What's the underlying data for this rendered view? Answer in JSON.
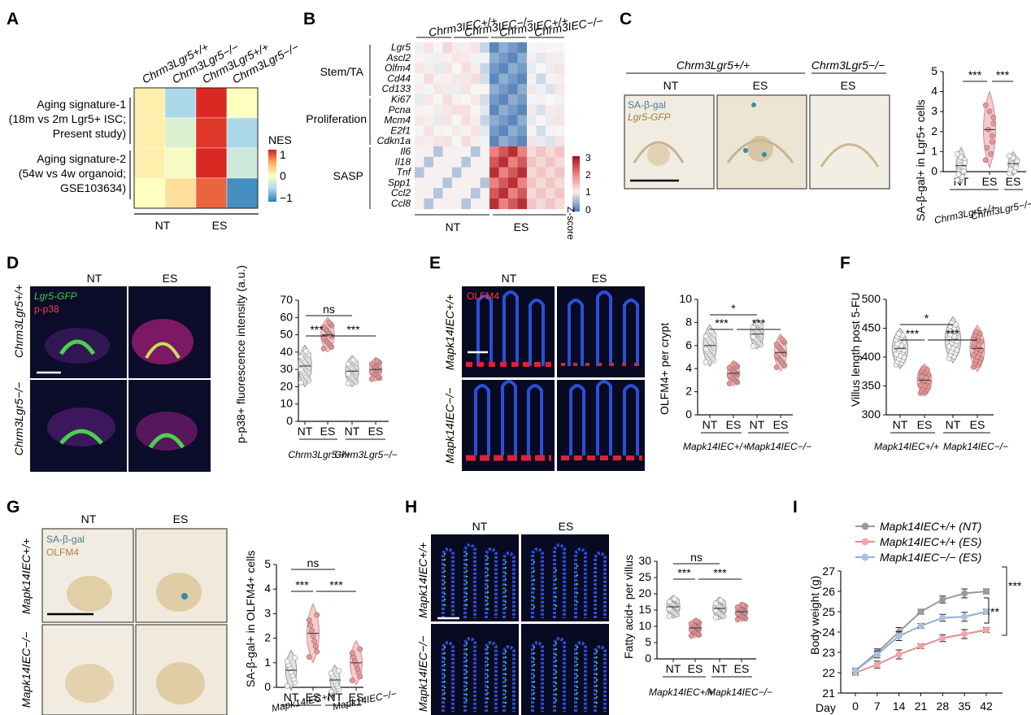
{
  "panels": {
    "A": {
      "label": "A",
      "col_labels": [
        "Chrm3Lgr5+/+",
        "Chrm3Lgr5−/−",
        "Chrm3Lgr5+/+",
        "Chrm3Lgr5−/−"
      ],
      "row_groups": [
        {
          "lines": [
            "Aging signature-1",
            "(18m vs 2m Lgr5+ ISC;",
            "Present study)"
          ]
        },
        {
          "lines": [
            "Aging signature-2",
            "(54w vs 4w organoid;",
            "GSE103634)"
          ]
        }
      ],
      "cells": [
        [
          0.1,
          -0.5,
          0.95,
          0.0
        ],
        [
          0.1,
          -0.2,
          0.9,
          -0.5
        ],
        [
          0.1,
          -0.05,
          0.95,
          -0.3
        ],
        [
          0.0,
          0.2,
          0.75,
          -0.9
        ]
      ],
      "legend_title": "NES",
      "legend_ticks": [
        "1",
        "0",
        "−1"
      ],
      "conditions": [
        "NT",
        "ES"
      ]
    },
    "B": {
      "label": "B",
      "col_labels": [
        "Chrm3IEC+/+",
        "Chrm3IEC−/−",
        "Chrm3IEC+/+",
        "Chrm3IEC−/−"
      ],
      "groups": [
        {
          "name": "Stem/TA",
          "genes": [
            "Lgr5",
            "Ascl2",
            "Olfm4",
            "Cd44",
            "Cd133"
          ]
        },
        {
          "name": "Proliferation",
          "genes": [
            "Ki67",
            "Pcna",
            "Mcm4",
            "E2f1",
            "Cdkn1a"
          ]
        },
        {
          "name": "SASP",
          "genes": [
            "Il6",
            "Il18",
            "Tnf",
            "Spp1",
            "Ccl2",
            "Ccl8"
          ]
        }
      ],
      "legend_title": "Z-score",
      "legend_ticks": [
        "3",
        "2",
        "1",
        "0"
      ],
      "conditions": [
        "NT",
        "ES"
      ]
    },
    "C": {
      "label": "C",
      "group1": "Chrm3Lgr5+/+",
      "group2": "Chrm3Lgr5−/−",
      "image_labels": [
        "NT",
        "ES",
        "ES"
      ],
      "stain1": "SA-β-gal",
      "stain2": "Lgr5-GFP",
      "ylabel": "SA-β-gal+ in Lgr5+ cells",
      "y_ticks": [
        "0",
        "1",
        "2",
        "3",
        "4",
        "5"
      ],
      "x_labels": [
        "NT",
        "ES",
        "ES"
      ],
      "genotypes": [
        "Chrm3Lgr5+/+",
        "Chrm3Lgr5−/−"
      ],
      "sig": [
        "***",
        "***"
      ]
    },
    "D": {
      "label": "D",
      "col_labels": [
        "NT",
        "ES"
      ],
      "row_labels": [
        "Chrm3Lgr5+/+",
        "Chrm3Lgr5−/−"
      ],
      "stain1": "Lgr5-GFP",
      "stain2": "p-p38",
      "ylabel": "p-p38+ fluorescence intensity (a.u.)",
      "y_ticks": [
        "0",
        "10",
        "20",
        "30",
        "40",
        "50",
        "60",
        "70"
      ],
      "x_labels": [
        "NT",
        "ES",
        "NT",
        "ES"
      ],
      "genotypes": [
        "Chrm3Lgr5+/+",
        "Chrm3Lgr5−/−"
      ],
      "sig": [
        "ns",
        "***",
        "***"
      ]
    },
    "E": {
      "label": "E",
      "col_labels": [
        "NT",
        "ES"
      ],
      "row_labels": [
        "Mapk14IEC+/+",
        "Mapk14IEC−/−"
      ],
      "stain": "OLFM4",
      "ylabel": "OLFM4+ per crypt",
      "y_ticks": [
        "0",
        "2",
        "4",
        "6",
        "8",
        "10"
      ],
      "x_labels": [
        "NT",
        "ES",
        "NT",
        "ES"
      ],
      "genotypes": [
        "Mapk14IEC+/+",
        "Mapk14IEC−/−"
      ],
      "sig": [
        "*",
        "***",
        "***"
      ]
    },
    "F": {
      "label": "F",
      "ylabel": "Villus length post 5-FU",
      "y_ticks": [
        "300",
        "350",
        "400",
        "450",
        "500"
      ],
      "x_labels": [
        "NT",
        "ES",
        "NT",
        "ES"
      ],
      "genotypes": [
        "Mapk14IEC+/+",
        "Mapk14IEC−/−"
      ],
      "sig": [
        "*",
        "***",
        "***"
      ]
    },
    "G": {
      "label": "G",
      "col_labels": [
        "NT",
        "ES"
      ],
      "row_labels": [
        "Mapk14IEC+/+",
        "Mapk14IEC−/−"
      ],
      "stain1": "SA-β-gal",
      "stain2": "OLFM4",
      "ylabel": "SA-β-gal+ in OLFM4+ cells",
      "y_ticks": [
        "0",
        "1",
        "2",
        "3",
        "4",
        "5"
      ],
      "x_labels": [
        "NT",
        "ES",
        "NT",
        "ES"
      ],
      "genotypes": [
        "Mapk14IEC+/+",
        "Mapk14IEC−/−"
      ],
      "sig": [
        "ns",
        "***",
        "***"
      ]
    },
    "H": {
      "label": "H",
      "col_labels": [
        "NT",
        "ES"
      ],
      "row_labels": [
        "Mapk14IEC+/+",
        "Mapk14IEC−/−"
      ],
      "ylabel": "Fatty acid+ per villus",
      "y_ticks": [
        "0",
        "5",
        "10",
        "15",
        "20",
        "25",
        "30"
      ],
      "x_labels": [
        "NT",
        "ES",
        "NT",
        "ES"
      ],
      "genotypes": [
        "Mapk14IEC+/+",
        "Mapk14IEC−/−"
      ],
      "sig": [
        "ns",
        "***",
        "***"
      ]
    },
    "I": {
      "label": "I",
      "ylabel": "Body weight (g)",
      "xlabel": "Day",
      "y_ticks": [
        "21",
        "22",
        "23",
        "24",
        "25",
        "26",
        "27"
      ],
      "x_ticks": [
        "0",
        "7",
        "14",
        "21",
        "28",
        "35",
        "42"
      ],
      "sig": [
        "***",
        "**"
      ]
    }
  },
  "colors": {
    "gray_violin": "#9a9a9a",
    "pink_violin": "#e7a3a6",
    "pink_dot": "#e88b8f",
    "blue_line": "#8faed8",
    "heat_red": "#b2182b",
    "heat_blue": "#2166ac"
  },
  "chart_data": [
    {
      "type": "heatmap",
      "panel": "A",
      "columns": [
        "Chrm3Lgr5+/+ NT",
        "Chrm3Lgr5−/− NT",
        "Chrm3Lgr5+/+ ES",
        "Chrm3Lgr5−/− ES"
      ],
      "values": [
        [
          0.1,
          -0.5,
          0.95,
          0.0
        ],
        [
          0.1,
          -0.2,
          0.9,
          -0.5
        ],
        [
          0.1,
          -0.05,
          0.95,
          -0.3
        ],
        [
          0.0,
          0.2,
          0.75,
          -0.9
        ]
      ],
      "range": [
        -1,
        1
      ]
    },
    {
      "type": "heatmap",
      "panel": "B",
      "rows": [
        "Lgr5",
        "Ascl2",
        "Olfm4",
        "Cd44",
        "Cd133",
        "Ki67",
        "Pcna",
        "Mcm4",
        "E2f1",
        "Cdkn1a",
        "Il6",
        "Il18",
        "Tnf",
        "Spp1",
        "Ccl2",
        "Ccl8"
      ],
      "range": [
        0,
        3
      ]
    },
    {
      "type": "scatter",
      "panel": "C",
      "categories": [
        "Chrm3Lgr5+/+ NT",
        "Chrm3Lgr5+/+ ES",
        "Chrm3Lgr5−/− ES"
      ],
      "means": [
        0.3,
        2.1,
        0.4
      ],
      "ylim": [
        0,
        5
      ]
    },
    {
      "type": "scatter",
      "panel": "D",
      "categories": [
        "Chrm3Lgr5+/+ NT",
        "Chrm3Lgr5+/+ ES",
        "Chrm3Lgr5−/− NT",
        "Chrm3Lgr5−/− ES"
      ],
      "means": [
        32,
        50,
        29,
        30
      ],
      "ylim": [
        0,
        70
      ]
    },
    {
      "type": "scatter",
      "panel": "E",
      "categories": [
        "Mapk14IEC+/+ NT",
        "Mapk14IEC+/+ ES",
        "Mapk14IEC−/− NT",
        "Mapk14IEC−/− ES"
      ],
      "means": [
        6,
        3.6,
        7,
        5.4
      ],
      "ylim": [
        0,
        10
      ]
    },
    {
      "type": "scatter",
      "panel": "F",
      "categories": [
        "Mapk14IEC+/+ NT",
        "Mapk14IEC+/+ ES",
        "Mapk14IEC−/− NT",
        "Mapk14IEC−/− ES"
      ],
      "means": [
        415,
        360,
        430,
        415
      ],
      "ylim": [
        300,
        500
      ]
    },
    {
      "type": "scatter",
      "panel": "G",
      "categories": [
        "Mapk14IEC+/+ NT",
        "Mapk14IEC+/+ ES",
        "Mapk14IEC−/− NT",
        "Mapk14IEC−/− ES"
      ],
      "means": [
        0.7,
        2.2,
        0.3,
        1.0
      ],
      "ylim": [
        0,
        5
      ]
    },
    {
      "type": "scatter",
      "panel": "H",
      "categories": [
        "Mapk14IEC+/+ NT",
        "Mapk14IEC+/+ ES",
        "Mapk14IEC−/− NT",
        "Mapk14IEC−/− ES"
      ],
      "means": [
        16,
        9.5,
        15.5,
        14.5
      ],
      "ylim": [
        0,
        30
      ]
    },
    {
      "type": "line",
      "panel": "I",
      "x": [
        0,
        7,
        14,
        21,
        28,
        35,
        42
      ],
      "series": [
        {
          "name": "Mapk14IEC+/+ (NT)",
          "values": [
            22.1,
            23.0,
            24.0,
            25.0,
            25.6,
            25.9,
            26.0
          ]
        },
        {
          "name": "Mapk14IEC+/+ (ES)",
          "values": [
            22.0,
            22.4,
            22.9,
            23.3,
            23.7,
            23.9,
            24.1
          ]
        },
        {
          "name": "Mapk14IEC−/− (ES)",
          "values": [
            22.1,
            22.9,
            23.8,
            24.3,
            24.7,
            24.75,
            25.0
          ]
        }
      ],
      "ylim": [
        21,
        27
      ]
    }
  ]
}
